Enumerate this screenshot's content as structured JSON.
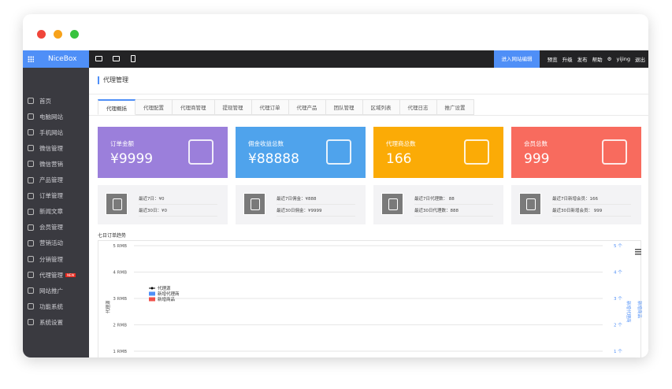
{
  "window": {
    "controls": [
      "#f0453a",
      "#f7a21b",
      "#37c33e"
    ]
  },
  "topbar": {
    "logo": "NiceBox",
    "edit_button": "进入网站编辑",
    "links": [
      "预览",
      "升级",
      "发布",
      "帮助"
    ],
    "user": "yijing",
    "logout": "退出"
  },
  "sidebar": {
    "items": [
      {
        "label": "首页",
        "icon": "home-icon"
      },
      {
        "label": "电脑网站",
        "icon": "monitor-icon"
      },
      {
        "label": "手机网站",
        "icon": "phone-icon"
      },
      {
        "label": "微信管理",
        "icon": "chat-icon"
      },
      {
        "label": "微信营销",
        "icon": "gamepad-icon"
      },
      {
        "label": "产品管理",
        "icon": "box-icon"
      },
      {
        "label": "订单管理",
        "icon": "cart-icon"
      },
      {
        "label": "新闻文章",
        "icon": "document-icon"
      },
      {
        "label": "会员管理",
        "icon": "user-icon"
      },
      {
        "label": "营销活动",
        "icon": "tag-icon"
      },
      {
        "label": "分销管理",
        "icon": "hierarchy-icon"
      },
      {
        "label": "代理管理",
        "icon": "share-icon",
        "badge": "NEW"
      },
      {
        "label": "网站推广",
        "icon": "bar-chart-icon"
      },
      {
        "label": "功能系统",
        "icon": "toolbox-icon"
      },
      {
        "label": "系统设置",
        "icon": "gear-icon"
      }
    ]
  },
  "page": {
    "title": "代理管理",
    "tabs": [
      "代理概括",
      "代理配置",
      "代理商管理",
      "提现管理",
      "代理订单",
      "代理产品",
      "团队管理",
      "区域列表",
      "代理日志",
      "推广设置"
    ],
    "active_tab": 0
  },
  "cards": [
    {
      "label": "订单金额",
      "value": "¥9999",
      "color": "#9b7fdb",
      "icon": "money-hand-icon"
    },
    {
      "label": "佣金收益总数",
      "value": "¥88888",
      "color": "#4fa3ec",
      "icon": "tablet-chart-icon"
    },
    {
      "label": "代理商总数",
      "value": "166",
      "color": "#fbab06",
      "icon": "org-chart-icon"
    },
    {
      "label": "会员总数",
      "value": "999",
      "color": "#f86b5e",
      "icon": "folder-icon"
    }
  ],
  "summaries": [
    {
      "line1": "最近7日：¥0",
      "line2": "最近30日：¥0"
    },
    {
      "line1": "最近7日佣金：¥888",
      "line2": "最近30日佣金：¥9999"
    },
    {
      "line1": "最近7日代理数： 88",
      "line2": "最近30日代理数：888"
    },
    {
      "line1": "最近7日新增会员：166",
      "line2": "最近30日新增会员： 999"
    }
  ],
  "chart": {
    "title": "七日订单趋势",
    "left_axis_title": "代理源",
    "left_ticks": [
      "5 RMB",
      "4 RMB",
      "3 RMB",
      "2 RMB",
      "1 RMB"
    ],
    "right_ticks": [
      "5 个",
      "4 个",
      "3 个",
      "2 个",
      "1 个"
    ],
    "right_axis_titles": [
      "新增代理商",
      "新增商品"
    ],
    "legend": [
      {
        "name": "代理源",
        "color": "#000000"
      },
      {
        "name": "新增代理商",
        "color": "#4f8ff7"
      },
      {
        "name": "新增商品",
        "color": "#f0514a"
      }
    ]
  }
}
